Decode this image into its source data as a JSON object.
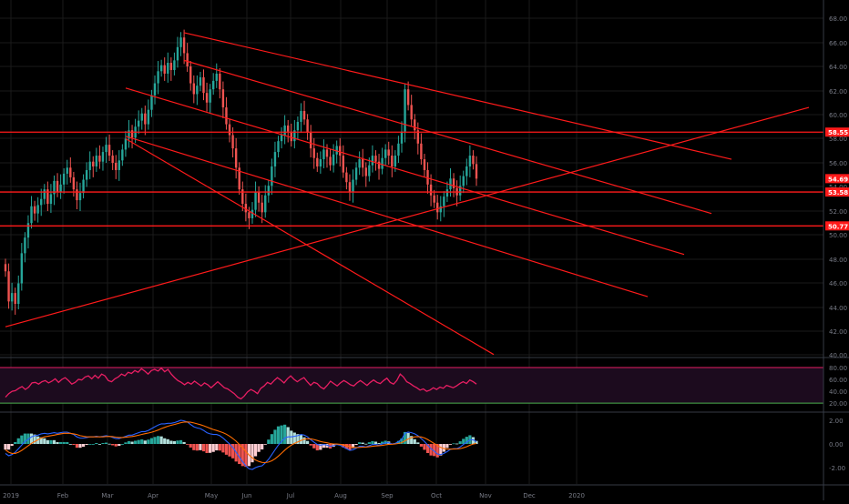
{
  "colors": {
    "background": "#000000",
    "grid": "#1a1a1a",
    "bull": "#26a69a",
    "bear": "#ef5350",
    "trendline": "#ff1a1a",
    "rsi_line": "#e91e63",
    "rsi_band": "#1c0b1e",
    "rsi_upper": "#e91e63",
    "rsi_lower": "#4caf50",
    "macd_line": "#2962ff",
    "signal_line": "#ff6d00",
    "axis_text": "#787b86",
    "price_tag": "#ff1a1a"
  },
  "time_axis": {
    "labels": [
      "2019",
      "Feb",
      "Mar",
      "Apr",
      "May",
      "Jun",
      "Jul",
      "Aug",
      "Sep",
      "Oct",
      "Nov",
      "Dec",
      "2020"
    ]
  },
  "price_axis": {
    "ticks": [
      "68.00",
      "66.00",
      "64.00",
      "62.00",
      "60.00",
      "58.00",
      "56.00",
      "54.00",
      "52.00",
      "50.00",
      "48.00",
      "46.00",
      "44.00",
      "42.00",
      "40.00"
    ]
  },
  "price_tags": [
    "58.55",
    "54.69",
    "53.58",
    "50.77"
  ],
  "rsi_axis": {
    "ticks": [
      "80.00",
      "60.00",
      "40.00",
      "20.00"
    ]
  },
  "macd_axis": {
    "ticks": [
      "2.00",
      "0.00",
      "-2.00"
    ]
  },
  "chart_data": {
    "type": "candlestick",
    "price_scale": {
      "min": 40,
      "max": 69
    },
    "months": [
      "2019",
      "Feb",
      "Mar",
      "Apr",
      "May",
      "Jun",
      "Jul",
      "Aug",
      "Sep",
      "Oct",
      "Nov",
      "Dec",
      "2020"
    ],
    "closes": [
      47.0,
      44.5,
      45.2,
      44.3,
      46.0,
      48.5,
      49.8,
      51.0,
      52.4,
      51.8,
      52.5,
      53.0,
      53.8,
      52.6,
      53.4,
      54.5,
      53.6,
      54.2,
      55.1,
      55.6,
      54.8,
      53.8,
      52.9,
      53.5,
      54.6,
      55.4,
      56.1,
      55.7,
      56.6,
      56.1,
      56.9,
      57.5,
      56.6,
      56.0,
      55.4,
      56.2,
      57.1,
      58.0,
      58.7,
      58.1,
      59.0,
      59.5,
      60.1,
      59.2,
      60.4,
      61.6,
      62.6,
      63.6,
      64.1,
      63.4,
      64.3,
      63.7,
      64.5,
      65.6,
      66.4,
      65.1,
      64.0,
      62.6,
      61.7,
      62.4,
      63.1,
      61.8,
      61.0,
      62.1,
      62.8,
      63.4,
      62.1,
      60.6,
      59.2,
      58.3,
      57.2,
      55.6,
      53.8,
      52.6,
      51.9,
      51.4,
      52.1,
      53.6,
      52.7,
      51.9,
      53.3,
      54.1,
      55.7,
      56.9,
      57.8,
      58.3,
      59.1,
      58.6,
      57.8,
      58.7,
      59.4,
      60.3,
      59.6,
      58.5,
      57.2,
      56.4,
      55.7,
      56.3,
      57.1,
      56.5,
      55.8,
      56.7,
      57.4,
      56.6,
      55.2,
      54.4,
      53.6,
      54.6,
      55.6,
      56.3,
      55.6,
      54.9,
      55.8,
      56.6,
      56.1,
      55.5,
      56.4,
      57.1,
      56.6,
      55.7,
      56.6,
      57.6,
      58.6,
      62.1,
      60.8,
      59.6,
      58.7,
      57.6,
      56.3,
      55.4,
      54.2,
      53.3,
      52.7,
      51.9,
      52.4,
      53.2,
      53.8,
      54.7,
      53.9,
      53.3,
      54.1,
      54.9,
      55.7,
      56.6,
      55.9,
      54.69
    ],
    "trendlines": [
      {
        "from": [
          "Apr",
          66.8
        ],
        "to": [
          "Nov",
          56.3
        ]
      },
      {
        "from": [
          "Apr",
          64.5
        ],
        "to": [
          "Nov",
          51.8
        ]
      },
      {
        "from": [
          "Mar",
          62.2
        ],
        "to": [
          "Nov",
          48.4
        ]
      },
      {
        "from": [
          "Mar",
          58.2
        ],
        "to": [
          "Oct",
          44.9
        ]
      },
      {
        "from": [
          "Mar",
          58.0
        ],
        "to": [
          "Oct",
          40.1
        ]
      },
      {
        "from": [
          "2019",
          42.4
        ],
        "to": [
          "2020",
          60.6
        ]
      }
    ],
    "horizontal_levels": [
      58.55,
      53.58,
      50.77
    ],
    "last_price": 54.69,
    "rsi": {
      "upper": 80,
      "lower": 20,
      "values": [
        30,
        36,
        40,
        41,
        45,
        48,
        43,
        47,
        54,
        55,
        52,
        56,
        58,
        54,
        57,
        61,
        55,
        60,
        63,
        58,
        52,
        55,
        60,
        59,
        64,
        66,
        61,
        67,
        62,
        69,
        66,
        58,
        56,
        61,
        64,
        69,
        66,
        72,
        70,
        75,
        72,
        78,
        74,
        69,
        75,
        77,
        74,
        79,
        73,
        77,
        69,
        63,
        58,
        55,
        51,
        55,
        52,
        57,
        53,
        49,
        54,
        51,
        46,
        51,
        56,
        51,
        46,
        44,
        40,
        36,
        30,
        27,
        32,
        39,
        43,
        40,
        36,
        45,
        49,
        55,
        52,
        58,
        63,
        59,
        54,
        61,
        66,
        60,
        56,
        60,
        63,
        56,
        50,
        55,
        53,
        47,
        44,
        50,
        57,
        53,
        49,
        54,
        58,
        55,
        51,
        49,
        54,
        58,
        54,
        50,
        55,
        59,
        55,
        53,
        58,
        62,
        55,
        52,
        58,
        69,
        64,
        56,
        53,
        49,
        46,
        42,
        44,
        40,
        42,
        46,
        43,
        47,
        45,
        50,
        48,
        46,
        49,
        53,
        56,
        53,
        59,
        56,
        52
      ]
    },
    "macd": {
      "scale_range": [
        -3,
        3
      ],
      "macd": [
        -0.8,
        -1.0,
        -0.9,
        -0.7,
        -0.4,
        -0.1,
        0.2,
        0.4,
        0.6,
        0.7,
        0.75,
        0.85,
        0.9,
        0.85,
        0.9,
        0.95,
        0.9,
        0.95,
        1.0,
        1.0,
        0.9,
        0.8,
        0.6,
        0.5,
        0.5,
        0.55,
        0.6,
        0.6,
        0.65,
        0.6,
        0.65,
        0.7,
        0.65,
        0.55,
        0.45,
        0.45,
        0.55,
        0.65,
        0.75,
        0.75,
        0.85,
        0.95,
        1.05,
        1.05,
        1.15,
        1.3,
        1.45,
        1.6,
        1.7,
        1.7,
        1.75,
        1.75,
        1.8,
        1.9,
        2.0,
        1.95,
        1.85,
        1.65,
        1.45,
        1.35,
        1.3,
        1.15,
        0.95,
        0.85,
        0.8,
        0.8,
        0.7,
        0.5,
        0.25,
        0.0,
        -0.3,
        -0.7,
        -1.1,
        -1.5,
        -1.85,
        -2.1,
        -2.15,
        -2.0,
        -1.9,
        -1.85,
        -1.6,
        -1.3,
        -0.9,
        -0.5,
        -0.1,
        0.2,
        0.5,
        0.6,
        0.6,
        0.65,
        0.7,
        0.8,
        0.75,
        0.6,
        0.35,
        0.15,
        -0.05,
        -0.1,
        -0.05,
        -0.1,
        -0.2,
        -0.15,
        -0.05,
        -0.1,
        -0.25,
        -0.4,
        -0.55,
        -0.5,
        -0.35,
        -0.2,
        -0.2,
        -0.25,
        -0.15,
        -0.05,
        -0.05,
        -0.1,
        0.0,
        0.1,
        0.1,
        0.0,
        0.05,
        0.2,
        0.4,
        0.9,
        1.0,
        0.95,
        0.85,
        0.7,
        0.45,
        0.2,
        -0.1,
        -0.4,
        -0.6,
        -0.85,
        -0.9,
        -0.8,
        -0.65,
        -0.45,
        -0.4,
        -0.4,
        -0.25,
        -0.05,
        0.15,
        0.35,
        0.35,
        0.2
      ],
      "signal": [
        -0.5,
        -0.7,
        -0.8,
        -0.8,
        -0.7,
        -0.55,
        -0.35,
        -0.15,
        0.05,
        0.2,
        0.35,
        0.5,
        0.6,
        0.65,
        0.7,
        0.75,
        0.8,
        0.85,
        0.9,
        0.9,
        0.9,
        0.85,
        0.8,
        0.7,
        0.65,
        0.6,
        0.6,
        0.6,
        0.6,
        0.6,
        0.6,
        0.63,
        0.64,
        0.62,
        0.58,
        0.55,
        0.55,
        0.57,
        0.6,
        0.63,
        0.68,
        0.74,
        0.81,
        0.87,
        0.92,
        0.99,
        1.08,
        1.18,
        1.3,
        1.4,
        1.5,
        1.58,
        1.65,
        1.72,
        1.8,
        1.85,
        1.86,
        1.84,
        1.78,
        1.7,
        1.63,
        1.54,
        1.43,
        1.32,
        1.22,
        1.14,
        1.05,
        0.95,
        0.82,
        0.66,
        0.46,
        0.23,
        -0.04,
        -0.33,
        -0.64,
        -0.93,
        -1.18,
        -1.35,
        -1.48,
        -1.56,
        -1.58,
        -1.53,
        -1.42,
        -1.25,
        -1.03,
        -0.78,
        -0.52,
        -0.29,
        -0.1,
        0.05,
        0.18,
        0.3,
        0.4,
        0.44,
        0.43,
        0.38,
        0.29,
        0.21,
        0.15,
        0.1,
        0.04,
        0.0,
        -0.01,
        -0.03,
        -0.07,
        -0.14,
        -0.22,
        -0.28,
        -0.3,
        -0.29,
        -0.27,
        -0.26,
        -0.24,
        -0.2,
        -0.17,
        -0.15,
        -0.12,
        -0.07,
        -0.03,
        -0.02,
        0.0,
        0.04,
        0.11,
        0.27,
        0.42,
        0.53,
        0.6,
        0.62,
        0.59,
        0.51,
        0.38,
        0.21,
        0.04,
        -0.14,
        -0.29,
        -0.39,
        -0.44,
        -0.44,
        -0.43,
        -0.42,
        -0.39,
        -0.32,
        -0.23,
        -0.11,
        -0.01,
        0.04
      ]
    }
  }
}
